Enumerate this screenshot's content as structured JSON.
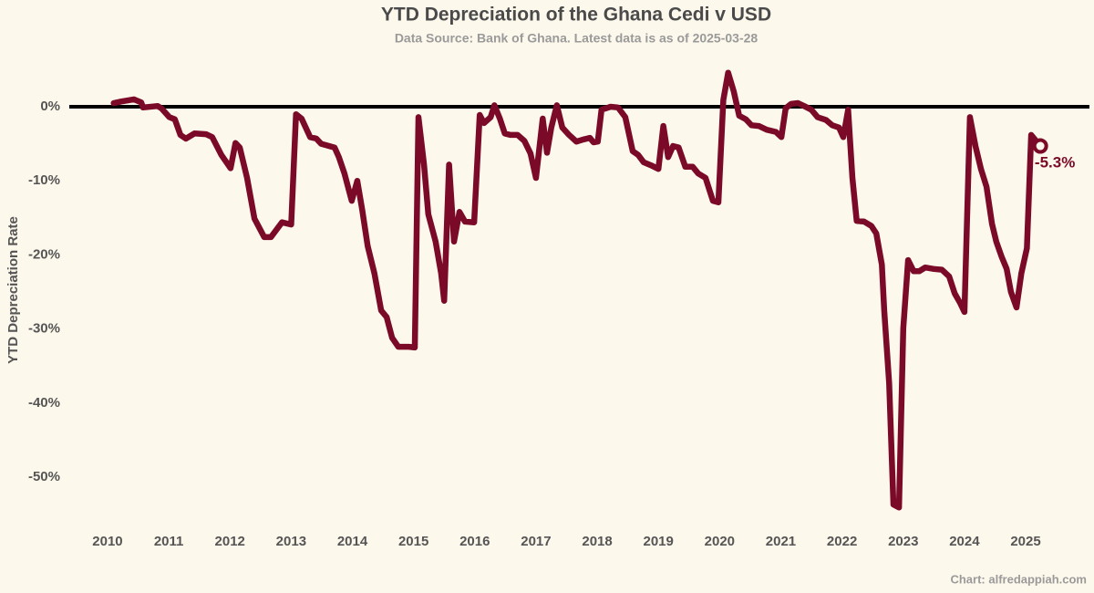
{
  "chart_data": {
    "type": "line",
    "title": "YTD Depreciation of the Ghana Cedi v USD",
    "subtitle": "Data Source: Bank of Ghana. Latest data is as of 2025-03-28",
    "y_label": "YTD Depreciation Rate",
    "credit": "Chart: alfredappiah.com",
    "xlim": [
      2009.6,
      2025.5
    ],
    "xticks": [
      2010,
      2011,
      2012,
      2013,
      2014,
      2015,
      2016,
      2017,
      2018,
      2019,
      2020,
      2021,
      2022,
      2023,
      2024,
      2025
    ],
    "ylim": [
      -57,
      7
    ],
    "yticks": [
      {
        "value": 0,
        "label": "0%"
      },
      {
        "value": -10,
        "label": "-10%"
      },
      {
        "value": -20,
        "label": "-20%"
      },
      {
        "value": -30,
        "label": "-30%"
      },
      {
        "value": -40,
        "label": "-40%"
      },
      {
        "value": -50,
        "label": "-50%"
      }
    ],
    "grid": false,
    "x": [
      2010.1,
      2010.22,
      2010.43,
      2010.55,
      2010.58,
      2010.82,
      2010.88,
      2011.01,
      2011.1,
      2011.19,
      2011.28,
      2011.42,
      2011.61,
      2011.71,
      2011.86,
      2012.01,
      2012.09,
      2012.16,
      2012.28,
      2012.4,
      2012.56,
      2012.67,
      2012.85,
      2013.0,
      2013.08,
      2013.17,
      2013.31,
      2013.41,
      2013.49,
      2013.71,
      2013.78,
      2013.87,
      2013.99,
      2014.08,
      2014.16,
      2014.25,
      2014.36,
      2014.47,
      2014.56,
      2014.65,
      2014.75,
      2014.92,
      2015.02,
      2015.08,
      2015.17,
      2015.24,
      2015.36,
      2015.45,
      2015.5,
      2015.58,
      2015.66,
      2015.75,
      2015.84,
      2015.99,
      2016.08,
      2016.15,
      2016.26,
      2016.32,
      2016.41,
      2016.49,
      2016.58,
      2016.7,
      2016.81,
      2016.91,
      2017.0,
      2017.11,
      2017.18,
      2017.25,
      2017.34,
      2017.43,
      2017.54,
      2017.66,
      2017.78,
      2017.88,
      2017.94,
      2018.01,
      2018.07,
      2018.22,
      2018.34,
      2018.46,
      2018.58,
      2018.67,
      2018.76,
      2018.88,
      2019.0,
      2019.08,
      2019.16,
      2019.24,
      2019.33,
      2019.44,
      2019.56,
      2019.65,
      2019.77,
      2019.89,
      2019.98,
      2020.06,
      2020.14,
      2020.23,
      2020.32,
      2020.43,
      2020.52,
      2020.64,
      2020.77,
      2020.92,
      2021.01,
      2021.08,
      2021.17,
      2021.28,
      2021.38,
      2021.5,
      2021.6,
      2021.74,
      2021.84,
      2021.95,
      2022.02,
      2022.1,
      2022.17,
      2022.24,
      2022.36,
      2022.48,
      2022.56,
      2022.65,
      2022.69,
      2022.77,
      2022.84,
      2022.93,
      2023.0,
      2023.08,
      2023.17,
      2023.26,
      2023.36,
      2023.5,
      2023.63,
      2023.75,
      2023.84,
      2023.93,
      2024.0,
      2024.09,
      2024.18,
      2024.27,
      2024.36,
      2024.45,
      2024.52,
      2024.61,
      2024.69,
      2024.76,
      2024.85,
      2024.93,
      2025.02,
      2025.09,
      2025.24
    ],
    "series": [
      {
        "color": "#7a0a28",
        "values": [
          0.5,
          0.7,
          1.0,
          0.6,
          -0.1,
          0.1,
          -0.2,
          -1.4,
          -1.7,
          -3.8,
          -4.3,
          -3.6,
          -3.7,
          -4.1,
          -6.5,
          -8.3,
          -4.9,
          -5.5,
          -9.6,
          -15.1,
          -17.6,
          -17.6,
          -15.6,
          -15.9,
          -1.0,
          -1.6,
          -4.1,
          -4.3,
          -5.0,
          -5.5,
          -6.8,
          -9.0,
          -12.7,
          -10.0,
          -13.9,
          -18.8,
          -22.5,
          -27.5,
          -28.4,
          -31.2,
          -32.4,
          -32.4,
          -32.5,
          -1.4,
          -7.8,
          -14.5,
          -18.2,
          -22.5,
          -26.2,
          -7.8,
          -18.2,
          -14.2,
          -15.5,
          -15.6,
          -1.1,
          -2.2,
          -1.4,
          0.2,
          -1.6,
          -3.6,
          -3.8,
          -3.8,
          -4.6,
          -6.3,
          -9.6,
          -1.6,
          -6.2,
          -2.8,
          0.2,
          -2.8,
          -3.8,
          -4.7,
          -4.4,
          -4.2,
          -4.8,
          -4.7,
          -0.4,
          0.0,
          -0.1,
          -1.4,
          -6.0,
          -6.5,
          -7.5,
          -7.9,
          -8.4,
          -2.6,
          -6.8,
          -5.3,
          -5.5,
          -8.1,
          -8.1,
          -9.0,
          -9.6,
          -12.7,
          -12.9,
          0.9,
          4.6,
          2.1,
          -1.2,
          -1.7,
          -2.5,
          -2.6,
          -3.1,
          -3.4,
          -4.1,
          -0.2,
          0.4,
          0.5,
          0.1,
          -0.4,
          -1.4,
          -1.8,
          -2.5,
          -2.8,
          -4.1,
          -0.4,
          -9.6,
          -15.4,
          -15.5,
          -16.1,
          -17.1,
          -21.3,
          -27.5,
          -37.3,
          -53.7,
          -54.1,
          -29.9,
          -20.7,
          -22.2,
          -22.2,
          -21.7,
          -21.9,
          -22.0,
          -22.9,
          -25.2,
          -26.5,
          -27.7,
          -1.4,
          -5.3,
          -8.4,
          -10.8,
          -15.8,
          -18.2,
          -20.3,
          -21.9,
          -25.0,
          -27.1,
          -22.5,
          -19.1,
          -3.8,
          -5.3
        ]
      }
    ],
    "annotation": "-5.3%"
  }
}
